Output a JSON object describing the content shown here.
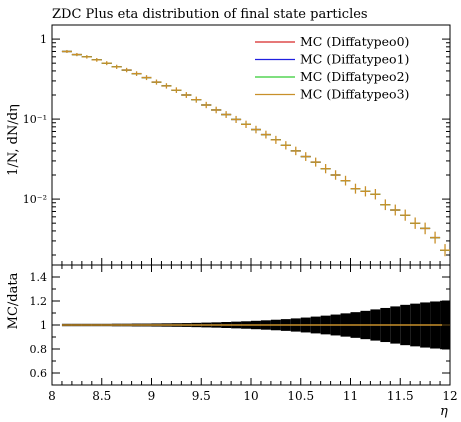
{
  "chart_data": {
    "type": "line",
    "title": "ZDC Plus eta distribution of final state particles",
    "xlabel": "η",
    "ylabel_main": "1/N, dN/dη",
    "ylabel_ratio": "MC/data",
    "xlim": [
      8,
      12
    ],
    "ylim_main_log": [
      0.0015,
      1.5
    ],
    "ylim_ratio": [
      0.5,
      1.5
    ],
    "x_ticks": [
      "8",
      "8.5",
      "9",
      "9.5",
      "10",
      "10.5",
      "11",
      "11.5",
      "12"
    ],
    "x_tick_values": [
      8,
      8.5,
      9,
      9.5,
      10,
      10.5,
      11,
      11.5,
      12
    ],
    "y_ticks_main": [
      "1",
      "10⁻¹",
      "10⁻²"
    ],
    "y_tick_values_main": [
      1,
      0.1,
      0.01
    ],
    "y_ticks_ratio": [
      "1.4",
      "1.2",
      "1",
      "0.8",
      "0.6"
    ],
    "y_tick_values_ratio": [
      1.4,
      1.2,
      1.0,
      0.8,
      0.6
    ],
    "legend_position": "top-right",
    "bin_width": 0.1,
    "x": [
      8.15,
      8.25,
      8.35,
      8.45,
      8.55,
      8.65,
      8.75,
      8.85,
      8.95,
      9.05,
      9.15,
      9.25,
      9.35,
      9.45,
      9.55,
      9.65,
      9.75,
      9.85,
      9.95,
      10.05,
      10.15,
      10.25,
      10.35,
      10.45,
      10.55,
      10.65,
      10.75,
      10.85,
      10.95,
      11.05,
      11.15,
      11.25,
      11.35,
      11.45,
      11.55,
      11.65,
      11.75,
      11.85,
      11.95
    ],
    "series": [
      {
        "name": "MC (Diffatypeo0)",
        "color": "#d62728",
        "values": [
          0.7,
          0.64,
          0.6,
          0.55,
          0.5,
          0.45,
          0.41,
          0.37,
          0.33,
          0.29,
          0.26,
          0.23,
          0.2,
          0.175,
          0.15,
          0.13,
          0.114,
          0.099,
          0.086,
          0.074,
          0.064,
          0.055,
          0.047,
          0.04,
          0.034,
          0.029,
          0.024,
          0.02,
          0.017,
          0.0135,
          0.0125,
          0.0115,
          0.0085,
          0.0073,
          0.0063,
          0.005,
          0.0043,
          0.0033,
          0.0023
        ]
      },
      {
        "name": "MC (Diffatypeo1)",
        "color": "#2020e0",
        "values": [
          0.7,
          0.64,
          0.6,
          0.55,
          0.5,
          0.45,
          0.41,
          0.37,
          0.33,
          0.29,
          0.26,
          0.23,
          0.2,
          0.175,
          0.15,
          0.13,
          0.114,
          0.099,
          0.086,
          0.074,
          0.064,
          0.055,
          0.047,
          0.04,
          0.034,
          0.029,
          0.024,
          0.02,
          0.017,
          0.0135,
          0.0125,
          0.0115,
          0.0085,
          0.0073,
          0.0063,
          0.005,
          0.0043,
          0.0033,
          0.0023
        ]
      },
      {
        "name": "MC (Diffatypeo2)",
        "color": "#33cc33",
        "values": [
          0.7,
          0.64,
          0.6,
          0.55,
          0.5,
          0.45,
          0.41,
          0.37,
          0.33,
          0.29,
          0.26,
          0.23,
          0.2,
          0.175,
          0.15,
          0.13,
          0.114,
          0.099,
          0.086,
          0.074,
          0.064,
          0.055,
          0.047,
          0.04,
          0.034,
          0.029,
          0.024,
          0.02,
          0.017,
          0.0135,
          0.0125,
          0.0115,
          0.0085,
          0.0073,
          0.0063,
          0.005,
          0.0043,
          0.0033,
          0.0023
        ]
      },
      {
        "name": "MC (Diffatypeo3)",
        "color": "#c8902a",
        "values": [
          0.7,
          0.64,
          0.6,
          0.55,
          0.5,
          0.45,
          0.41,
          0.37,
          0.33,
          0.29,
          0.26,
          0.23,
          0.2,
          0.175,
          0.15,
          0.13,
          0.114,
          0.099,
          0.086,
          0.074,
          0.064,
          0.055,
          0.047,
          0.04,
          0.034,
          0.029,
          0.024,
          0.02,
          0.017,
          0.0135,
          0.0125,
          0.0115,
          0.0085,
          0.0073,
          0.0063,
          0.005,
          0.0043,
          0.0033,
          0.0023
        ]
      }
    ],
    "ratio": {
      "value": 1.0,
      "uncertainty_band_halfwidth": [
        0.01,
        0.01,
        0.01,
        0.01,
        0.01,
        0.011,
        0.011,
        0.012,
        0.012,
        0.013,
        0.014,
        0.015,
        0.016,
        0.018,
        0.02,
        0.022,
        0.025,
        0.028,
        0.031,
        0.035,
        0.039,
        0.044,
        0.049,
        0.055,
        0.062,
        0.07,
        0.078,
        0.087,
        0.097,
        0.107,
        0.118,
        0.13,
        0.142,
        0.155,
        0.168,
        0.178,
        0.188,
        0.196,
        0.202
      ],
      "band_color": "#000000",
      "line_color": "#c8902a"
    }
  }
}
